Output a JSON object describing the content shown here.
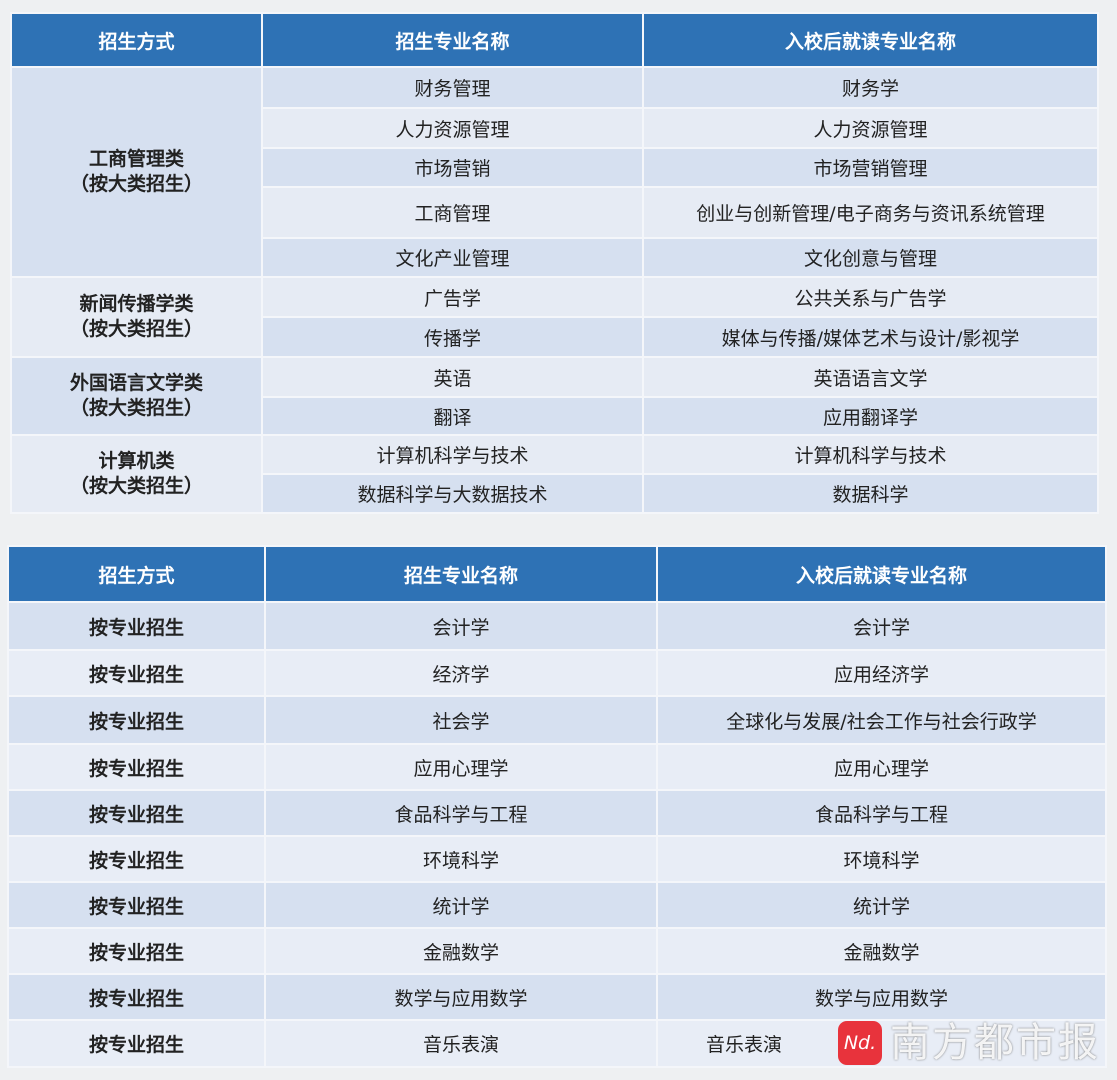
{
  "headers": [
    "招生方式",
    "招生专业名称",
    "入校后就读专业名称"
  ],
  "table1": {
    "groups": [
      {
        "label1": "工商管理类",
        "label2": "（按大类招生）",
        "rows": [
          [
            "财务管理",
            "财务学"
          ],
          [
            "人力资源管理",
            "人力资源管理"
          ],
          [
            "市场营销",
            "市场营销管理"
          ],
          [
            "工商管理",
            "创业与创新管理/电子商务与资讯系统管理"
          ],
          [
            "文化产业管理",
            "文化创意与管理"
          ]
        ]
      },
      {
        "label1": "新闻传播学类",
        "label2": "（按大类招生）",
        "rows": [
          [
            "广告学",
            "公共关系与广告学"
          ],
          [
            "传播学",
            "媒体与传播/媒体艺术与设计/影视学"
          ]
        ]
      },
      {
        "label1": "外国语言文学类",
        "label2": "（按大类招生）",
        "rows": [
          [
            "英语",
            "英语语言文学"
          ],
          [
            "翻译",
            "应用翻译学"
          ]
        ]
      },
      {
        "label1": "计算机类",
        "label2": "（按大类招生）",
        "rows": [
          [
            "计算机科学与技术",
            "计算机科学与技术"
          ],
          [
            "数据科学与大数据技术",
            "数据科学"
          ]
        ]
      }
    ]
  },
  "table2": {
    "rows": [
      [
        "按专业招生",
        "会计学",
        "会计学"
      ],
      [
        "按专业招生",
        "经济学",
        "应用经济学"
      ],
      [
        "按专业招生",
        "社会学",
        "全球化与发展/社会工作与社会行政学"
      ],
      [
        "按专业招生",
        "应用心理学",
        "应用心理学"
      ],
      [
        "按专业招生",
        "食品科学与工程",
        "食品科学与工程"
      ],
      [
        "按专业招生",
        "环境科学",
        "环境科学"
      ],
      [
        "按专业招生",
        "统计学",
        "统计学"
      ],
      [
        "按专业招生",
        "金融数学",
        "金融数学"
      ],
      [
        "按专业招生",
        "数学与应用数学",
        "数学与应用数学"
      ],
      [
        "按专业招生",
        "音乐表演",
        "音乐表演"
      ]
    ]
  },
  "watermark": {
    "logo": "Nd.",
    "text": "南方都市报"
  },
  "colors": {
    "header": "#2e72b5",
    "row_dark": "#d6e0f0",
    "row_light": "#e8edf6",
    "logo": "#e8333c"
  }
}
